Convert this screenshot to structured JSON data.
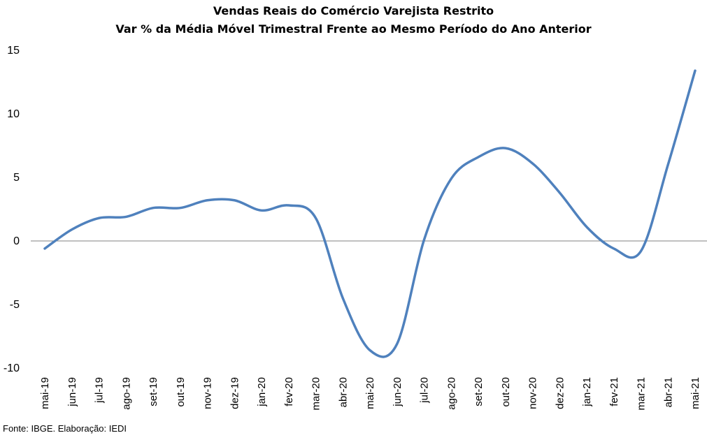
{
  "chart_data": {
    "type": "line",
    "title": "Vendas Reais do Comércio Varejista Restrito",
    "subtitle": "Var % da Média Móvel Trimestral Frente ao Mesmo Período do Ano Anterior",
    "xlabel": "",
    "ylabel": "",
    "ylim": [
      -10,
      15
    ],
    "yticks": [
      -10,
      -5,
      0,
      5,
      10,
      15
    ],
    "grid": false,
    "legend": "none",
    "categories": [
      "mai-19",
      "jun-19",
      "jul-19",
      "ago-19",
      "set-19",
      "out-19",
      "nov-19",
      "dez-19",
      "jan-20",
      "fev-20",
      "mar-20",
      "abr-20",
      "mai-20",
      "jun-20",
      "jul-20",
      "ago-20",
      "set-20",
      "out-20",
      "nov-20",
      "dez-20",
      "jan-21",
      "fev-21",
      "mar-21",
      "abr-21",
      "mai-21"
    ],
    "series": [
      {
        "color": "#4f81bd",
        "values": [
          -0.6,
          0.9,
          1.8,
          1.9,
          2.6,
          2.6,
          3.2,
          3.2,
          2.4,
          2.8,
          1.8,
          -4.5,
          -8.6,
          -8.1,
          0.1,
          4.9,
          6.6,
          7.3,
          6.1,
          3.8,
          1.1,
          -0.6,
          -0.8,
          6.0,
          13.4
        ]
      }
    ]
  },
  "source": "Fonte: IBGE. Elaboração: IEDI"
}
